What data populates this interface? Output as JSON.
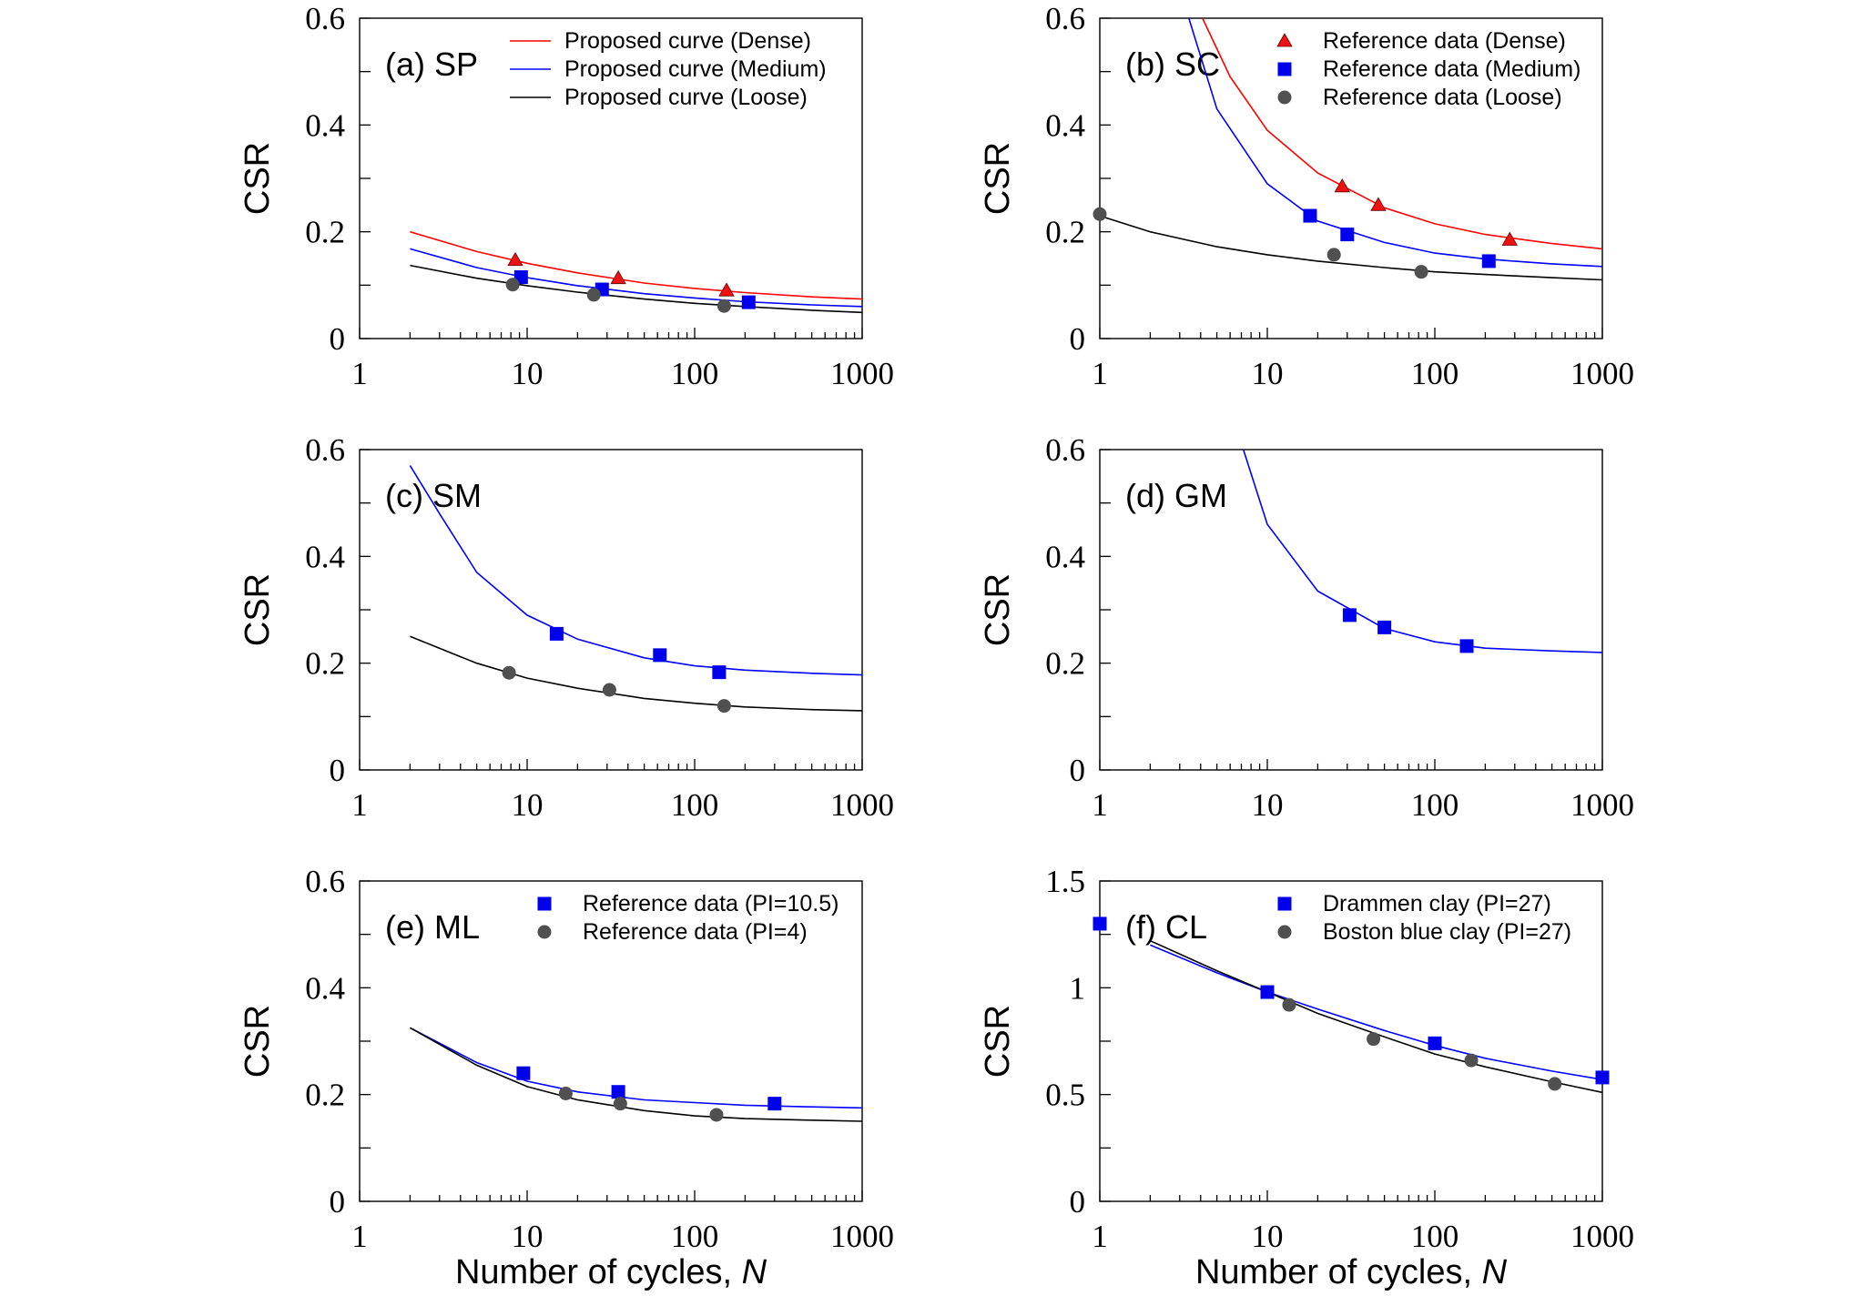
{
  "colors": {
    "dense": "#ff0000",
    "medium": "#0000ff",
    "loose": "#000000",
    "medium_marker": "#0000ee",
    "loose_marker": "#505050",
    "dense_marker": "#ee1111"
  },
  "chart_data": [
    {
      "type": "scatter",
      "panel_label": "(a) SP",
      "ylabel": "CSR",
      "xlabel": "",
      "xscale": "log",
      "xlim": [
        1,
        1000
      ],
      "ylim": [
        0,
        0.6
      ],
      "xticks": [
        "1",
        "10",
        "100",
        "1000"
      ],
      "yticks": [
        "0",
        "0.2",
        "0.4",
        "0.6"
      ],
      "legend_position": "top-right",
      "legend": [
        {
          "label": "Proposed curve (Dense)",
          "kind": "line",
          "color": "#ff0000"
        },
        {
          "label": "Proposed curve (Medium)",
          "kind": "line",
          "color": "#0000ff"
        },
        {
          "label": "Proposed curve (Loose)",
          "kind": "line",
          "color": "#000000"
        }
      ],
      "curves": [
        {
          "name": "Dense",
          "color": "#ff0000",
          "x": [
            2,
            5,
            10,
            20,
            50,
            100,
            200,
            500,
            1000
          ],
          "y": [
            0.2,
            0.163,
            0.141,
            0.123,
            0.104,
            0.094,
            0.086,
            0.078,
            0.074
          ]
        },
        {
          "name": "Medium",
          "color": "#0000ff",
          "x": [
            2,
            5,
            10,
            20,
            50,
            100,
            200,
            500,
            1000
          ],
          "y": [
            0.168,
            0.133,
            0.114,
            0.099,
            0.084,
            0.076,
            0.069,
            0.063,
            0.06
          ]
        },
        {
          "name": "Loose",
          "color": "#000000",
          "x": [
            2,
            5,
            10,
            20,
            50,
            100,
            200,
            500,
            1000
          ],
          "y": [
            0.137,
            0.113,
            0.099,
            0.087,
            0.074,
            0.066,
            0.06,
            0.053,
            0.049
          ]
        }
      ],
      "points": [
        {
          "name": "Dense",
          "marker": "triangle",
          "color": "#ee1111",
          "x": [
            8.5,
            35,
            155
          ],
          "y": [
            0.147,
            0.113,
            0.09
          ]
        },
        {
          "name": "Medium",
          "marker": "square",
          "color": "#0000ee",
          "x": [
            9.2,
            28,
            210
          ],
          "y": [
            0.115,
            0.092,
            0.068
          ]
        },
        {
          "name": "Loose",
          "marker": "circle",
          "color": "#505050",
          "x": [
            8.2,
            25,
            150
          ],
          "y": [
            0.101,
            0.082,
            0.061
          ]
        }
      ]
    },
    {
      "type": "scatter",
      "panel_label": "(b) SC",
      "ylabel": "CSR",
      "xlabel": "",
      "xscale": "log",
      "xlim": [
        1,
        1000
      ],
      "ylim": [
        0,
        0.6
      ],
      "xticks": [
        "1",
        "10",
        "100",
        "1000"
      ],
      "yticks": [
        "0",
        "0.2",
        "0.4",
        "0.6"
      ],
      "legend_position": "top-right",
      "legend": [
        {
          "label": "Reference data (Dense)",
          "kind": "triangle",
          "color": "#ee1111"
        },
        {
          "label": "Reference data (Medium)",
          "kind": "square",
          "color": "#0000ee"
        },
        {
          "label": "Reference data (Loose)",
          "kind": "circle",
          "color": "#505050"
        }
      ],
      "curves": [
        {
          "name": "Dense",
          "color": "#ff0000",
          "x": [
            4.1,
            6,
            10,
            20,
            50,
            100,
            200,
            500,
            1000
          ],
          "y": [
            0.6,
            0.49,
            0.39,
            0.31,
            0.245,
            0.215,
            0.195,
            0.178,
            0.168
          ]
        },
        {
          "name": "Medium",
          "color": "#0000ff",
          "x": [
            3.4,
            5,
            10,
            20,
            50,
            100,
            200,
            500,
            1000
          ],
          "y": [
            0.6,
            0.43,
            0.29,
            0.22,
            0.18,
            0.16,
            0.149,
            0.14,
            0.135
          ]
        },
        {
          "name": "Loose",
          "color": "#000000",
          "x": [
            1,
            2,
            5,
            10,
            20,
            50,
            100,
            200,
            500,
            1000
          ],
          "y": [
            0.23,
            0.2,
            0.172,
            0.157,
            0.145,
            0.133,
            0.125,
            0.12,
            0.114,
            0.11
          ]
        }
      ],
      "points": [
        {
          "name": "Dense",
          "marker": "triangle",
          "color": "#ee1111",
          "x": [
            28,
            46,
            280
          ],
          "y": [
            0.285,
            0.25,
            0.185
          ]
        },
        {
          "name": "Medium",
          "marker": "square",
          "color": "#0000ee",
          "x": [
            18,
            30,
            210
          ],
          "y": [
            0.23,
            0.195,
            0.145
          ]
        },
        {
          "name": "Loose",
          "marker": "circle",
          "color": "#505050",
          "x": [
            1,
            25,
            83
          ],
          "y": [
            0.233,
            0.157,
            0.125
          ]
        }
      ]
    },
    {
      "type": "scatter",
      "panel_label": "(c) SM",
      "ylabel": "CSR",
      "xlabel": "",
      "xscale": "log",
      "xlim": [
        1,
        1000
      ],
      "ylim": [
        0,
        0.6
      ],
      "xticks": [
        "1",
        "10",
        "100",
        "1000"
      ],
      "yticks": [
        "0",
        "0.2",
        "0.4",
        "0.6"
      ],
      "legend_position": "none",
      "legend": [],
      "curves": [
        {
          "name": "Medium",
          "color": "#0000ff",
          "x": [
            2,
            3,
            5,
            10,
            20,
            50,
            100,
            200,
            500,
            1000
          ],
          "y": [
            0.57,
            0.48,
            0.37,
            0.29,
            0.245,
            0.21,
            0.195,
            0.187,
            0.181,
            0.178
          ]
        },
        {
          "name": "Loose",
          "color": "#000000",
          "x": [
            2,
            5,
            10,
            20,
            50,
            100,
            200,
            500,
            1000
          ],
          "y": [
            0.25,
            0.2,
            0.172,
            0.153,
            0.134,
            0.125,
            0.118,
            0.113,
            0.111
          ]
        }
      ],
      "points": [
        {
          "name": "Medium",
          "marker": "square",
          "color": "#0000ee",
          "x": [
            15,
            62,
            140
          ],
          "y": [
            0.255,
            0.215,
            0.183
          ]
        },
        {
          "name": "Loose",
          "marker": "circle",
          "color": "#505050",
          "x": [
            7.8,
            31,
            150
          ],
          "y": [
            0.182,
            0.15,
            0.12
          ]
        }
      ]
    },
    {
      "type": "scatter",
      "panel_label": "(d) GM",
      "ylabel": "CSR",
      "xlabel": "",
      "xscale": "log",
      "xlim": [
        1,
        1000
      ],
      "ylim": [
        0,
        0.6
      ],
      "xticks": [
        "1",
        "10",
        "100",
        "1000"
      ],
      "yticks": [
        "0",
        "0.2",
        "0.4",
        "0.6"
      ],
      "legend_position": "none",
      "legend": [],
      "curves": [
        {
          "name": "Medium",
          "color": "#0000ff",
          "x": [
            7.2,
            10,
            20,
            50,
            100,
            200,
            500,
            1000
          ],
          "y": [
            0.6,
            0.46,
            0.335,
            0.265,
            0.24,
            0.228,
            0.223,
            0.22
          ]
        }
      ],
      "points": [
        {
          "name": "Medium",
          "marker": "square",
          "color": "#0000ee",
          "x": [
            31,
            50,
            155
          ],
          "y": [
            0.29,
            0.267,
            0.232
          ]
        }
      ]
    },
    {
      "type": "scatter",
      "panel_label": "(e) ML",
      "ylabel": "CSR",
      "xlabel": "Number of cycles, N",
      "xscale": "log",
      "xlim": [
        1,
        1000
      ],
      "ylim": [
        0,
        0.6
      ],
      "xticks": [
        "1",
        "10",
        "100",
        "1000"
      ],
      "yticks": [
        "0",
        "0.2",
        "0.4",
        "0.6"
      ],
      "legend_position": "top-right",
      "legend": [
        {
          "label": "Reference data (PI=10.5)",
          "kind": "square",
          "color": "#0000ee"
        },
        {
          "label": "Reference data (PI=4)",
          "kind": "circle",
          "color": "#505050"
        }
      ],
      "curves": [
        {
          "name": "PI=10.5",
          "color": "#0000ff",
          "x": [
            2,
            5,
            10,
            20,
            50,
            100,
            200,
            500,
            1000
          ],
          "y": [
            0.325,
            0.26,
            0.225,
            0.205,
            0.19,
            0.185,
            0.18,
            0.177,
            0.175
          ]
        },
        {
          "name": "PI=4",
          "color": "#000000",
          "x": [
            2,
            5,
            10,
            20,
            50,
            100,
            200,
            500,
            1000
          ],
          "y": [
            0.325,
            0.255,
            0.215,
            0.19,
            0.17,
            0.16,
            0.155,
            0.152,
            0.15
          ]
        }
      ],
      "points": [
        {
          "name": "PI=10.5",
          "marker": "square",
          "color": "#0000ee",
          "x": [
            9.5,
            35,
            300
          ],
          "y": [
            0.24,
            0.205,
            0.183
          ]
        },
        {
          "name": "PI=4",
          "marker": "circle",
          "color": "#505050",
          "x": [
            17,
            36,
            135
          ],
          "y": [
            0.202,
            0.183,
            0.162
          ]
        }
      ]
    },
    {
      "type": "scatter",
      "panel_label": "(f) CL",
      "ylabel": "CSR",
      "xlabel": "Number of cycles, N",
      "xscale": "log",
      "xlim": [
        1,
        1000
      ],
      "ylim": [
        0,
        1.5
      ],
      "xticks": [
        "1",
        "10",
        "100",
        "1000"
      ],
      "yticks": [
        "0",
        "0.5",
        "1",
        "1.5"
      ],
      "legend_position": "top-right",
      "legend": [
        {
          "label": "Drammen clay (PI=27)",
          "kind": "square",
          "color": "#0000ee"
        },
        {
          "label": "Boston blue clay (PI=27)",
          "kind": "circle",
          "color": "#505050"
        }
      ],
      "curves": [
        {
          "name": "Drammen",
          "color": "#0000ff",
          "x": [
            2,
            5,
            10,
            20,
            50,
            100,
            200,
            500,
            1000
          ],
          "y": [
            1.2,
            1.07,
            0.98,
            0.9,
            0.8,
            0.73,
            0.67,
            0.61,
            0.57
          ]
        },
        {
          "name": "Boston",
          "color": "#000000",
          "x": [
            2,
            5,
            10,
            20,
            50,
            100,
            200,
            500,
            1000
          ],
          "y": [
            1.22,
            1.08,
            0.98,
            0.88,
            0.77,
            0.69,
            0.63,
            0.56,
            0.51
          ]
        }
      ],
      "points": [
        {
          "name": "Drammen",
          "marker": "square",
          "color": "#0000ee",
          "x": [
            1,
            10,
            100,
            1000
          ],
          "y": [
            1.3,
            0.98,
            0.74,
            0.58
          ]
        },
        {
          "name": "Boston",
          "marker": "circle",
          "color": "#505050",
          "x": [
            13.5,
            43,
            165,
            520
          ],
          "y": [
            0.92,
            0.76,
            0.66,
            0.55
          ]
        }
      ]
    }
  ]
}
